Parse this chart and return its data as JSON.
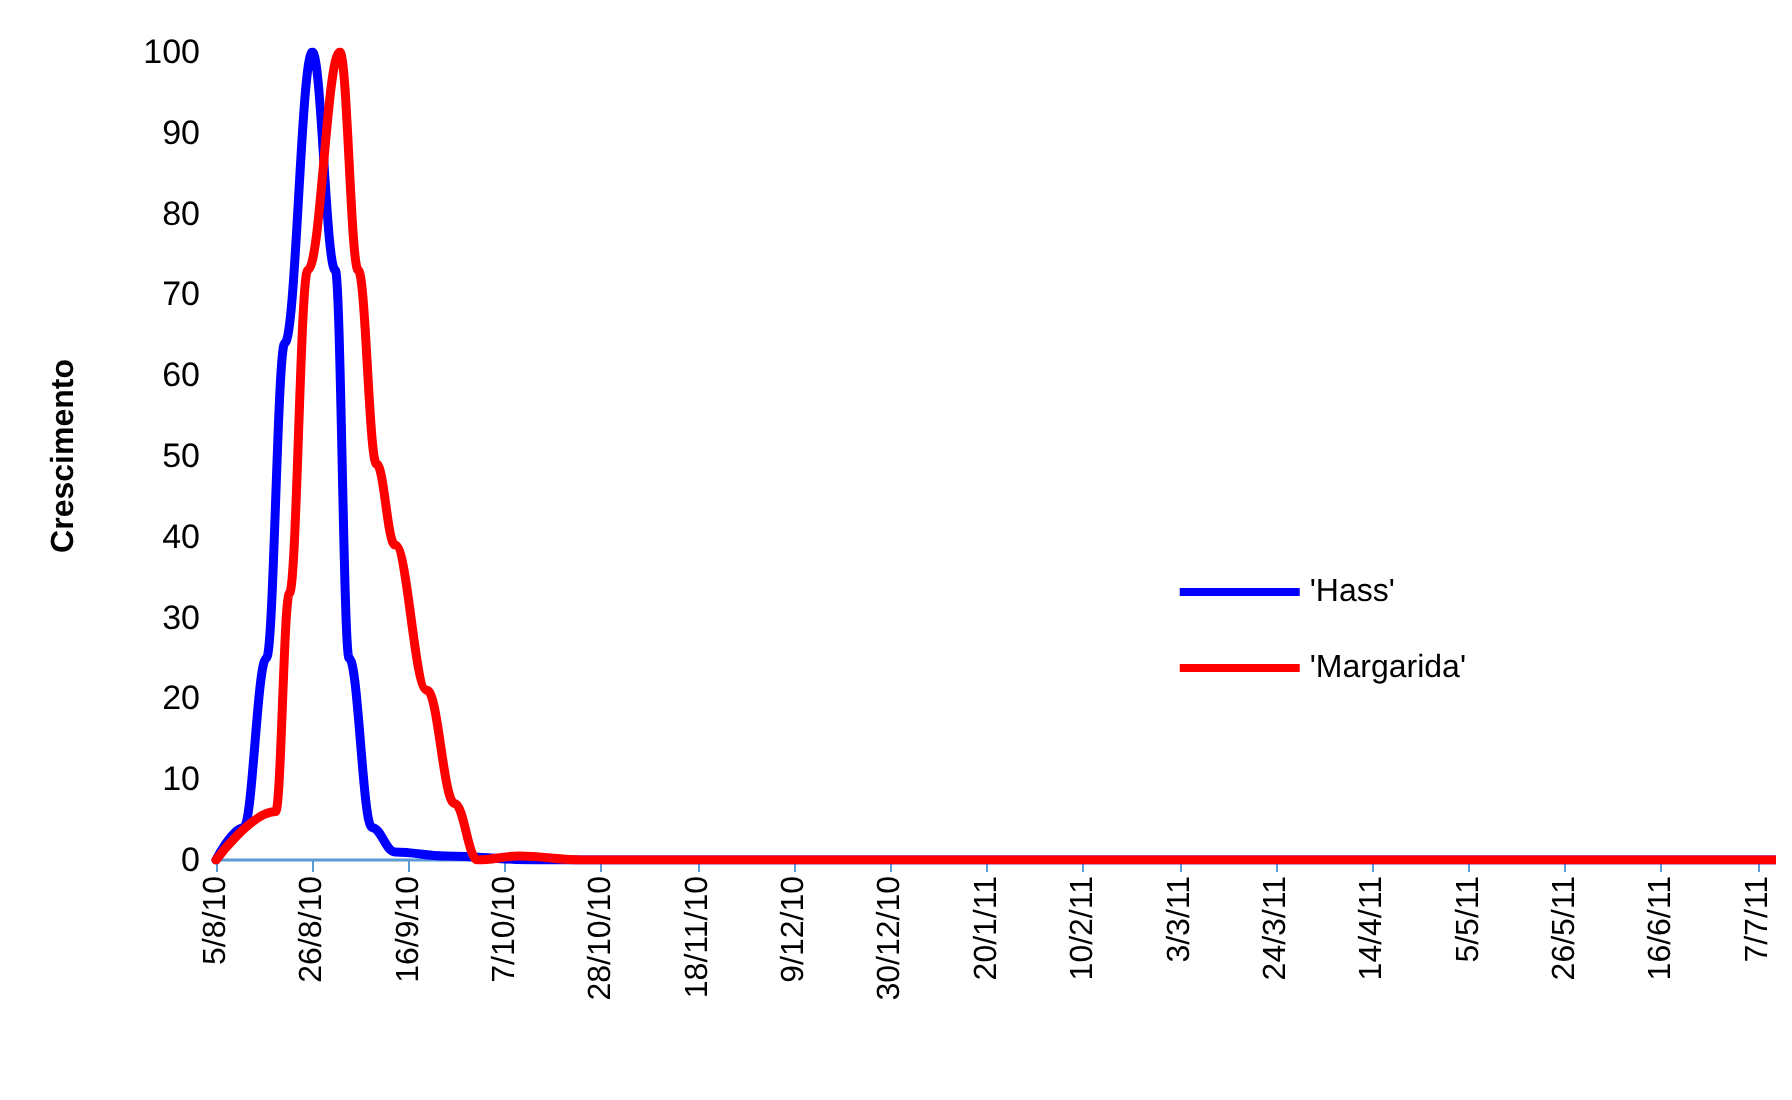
{
  "chart_data": {
    "type": "line",
    "ylabel": "Crescimento",
    "legend": "right",
    "grid": false,
    "marker": "none",
    "line_style": "solid",
    "xlim": [
      "2010-08-05",
      "2011-07-11"
    ],
    "xticks": [
      {
        "value": "2010-08-05",
        "label": "5/8/10"
      },
      {
        "value": "2010-08-26",
        "label": "26/8/10"
      },
      {
        "value": "2010-09-16",
        "label": "16/9/10"
      },
      {
        "value": "2010-10-07",
        "label": "7/10/10"
      },
      {
        "value": "2010-10-28",
        "label": "28/10/10"
      },
      {
        "value": "2010-11-18",
        "label": "18/11/10"
      },
      {
        "value": "2010-12-09",
        "label": "9/12/10"
      },
      {
        "value": "2010-12-30",
        "label": "30/12/10"
      },
      {
        "value": "2011-01-20",
        "label": "20/1/11"
      },
      {
        "value": "2011-02-10",
        "label": "10/2/11"
      },
      {
        "value": "2011-03-03",
        "label": "3/3/11"
      },
      {
        "value": "2011-03-24",
        "label": "24/3/11"
      },
      {
        "value": "2011-04-14",
        "label": "14/4/11"
      },
      {
        "value": "2011-05-05",
        "label": "5/5/11"
      },
      {
        "value": "2011-05-26",
        "label": "26/5/11"
      },
      {
        "value": "2011-06-16",
        "label": "16/6/11"
      },
      {
        "value": "2011-07-07",
        "label": "7/7/11"
      }
    ],
    "ylim": [
      0,
      100
    ],
    "yticks": [
      0,
      10,
      20,
      30,
      40,
      50,
      60,
      70,
      80,
      90,
      100
    ],
    "series": [
      {
        "name": "'Hass'",
        "color": "#0000ff",
        "x": [
          "2010-08-05",
          "2010-08-11",
          "2010-08-16",
          "2010-08-20",
          "2010-08-26",
          "2010-08-31",
          "2010-09-03",
          "2010-09-08",
          "2010-09-13",
          "2010-09-24",
          "2010-10-14",
          "2011-07-11"
        ],
        "values": [
          0,
          4,
          25,
          64,
          100,
          73,
          25,
          4,
          1,
          0.5,
          0,
          0
        ]
      },
      {
        "name": "'Margarida'",
        "color": "#ff0000",
        "x": [
          "2010-08-05",
          "2010-08-18",
          "2010-08-21",
          "2010-08-25",
          "2010-09-01",
          "2010-09-05",
          "2010-09-09",
          "2010-09-13",
          "2010-09-20",
          "2010-09-26",
          "2010-10-01",
          "2010-10-10",
          "2010-10-24",
          "2011-07-11"
        ],
        "values": [
          0,
          6,
          33,
          73,
          100,
          73,
          49,
          39,
          21,
          7,
          0,
          0.5,
          0,
          0
        ]
      }
    ]
  }
}
